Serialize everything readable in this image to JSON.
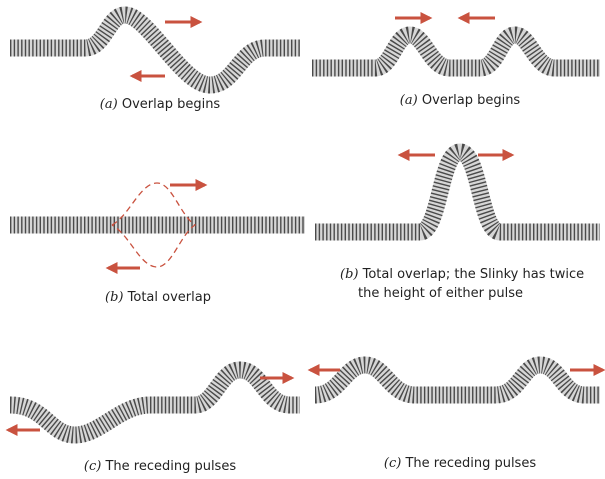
{
  "panels": [
    {
      "label": "(a)",
      "caption": "Overlap begins"
    },
    {
      "label": "(a)",
      "caption": "Overlap begins"
    },
    {
      "label": "(b)",
      "caption": "Total overlap"
    },
    {
      "label": "(b)",
      "caption": [
        "Total overlap; the Slinky has twice",
        "the height of either pulse"
      ]
    },
    {
      "label": "(c)",
      "caption": "The receding pulses"
    },
    {
      "label": "(c)",
      "caption": "The receding pulses"
    }
  ]
}
